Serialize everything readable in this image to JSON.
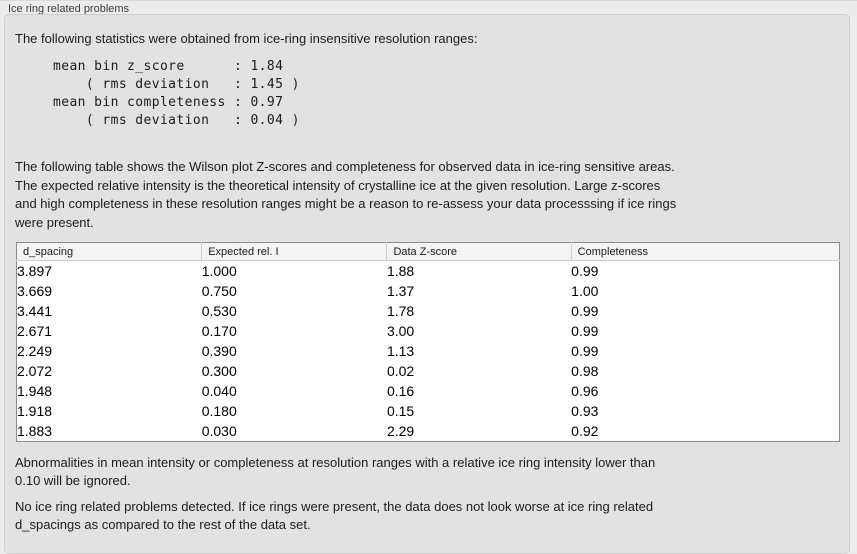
{
  "group": {
    "title": "Ice ring related problems"
  },
  "intro_text": "The following statistics were obtained from ice-ring insensitive resolution ranges:",
  "stats_block_lines": [
    "mean bin z_score      : 1.84",
    "    ( rms deviation   : 1.45 )",
    "mean bin completeness : 0.97",
    "    ( rms deviation   : 0.04 )"
  ],
  "stats": {
    "mean_bin_z_score": "1.84",
    "z_score_rms_deviation": "1.45",
    "mean_bin_completeness": "0.97",
    "completeness_rms_deviation": "0.04"
  },
  "table_intro_lines": [
    "The following table shows the Wilson plot Z-scores and completeness for observed data in ice-ring sensitive areas.",
    "The expected relative intensity is the theoretical intensity of crystalline ice at the given resolution. Large z-scores",
    "and high completeness in these resolution ranges might be a reason to re-assess your data processsing if ice rings",
    "were present."
  ],
  "table": {
    "columns": [
      "d_spacing",
      "Expected rel. I",
      "Data Z-score",
      "Completeness"
    ],
    "rows": [
      [
        "3.897",
        "1.000",
        "1.88",
        "0.99"
      ],
      [
        "3.669",
        "0.750",
        "1.37",
        "1.00"
      ],
      [
        "3.441",
        "0.530",
        "1.78",
        "0.99"
      ],
      [
        "2.671",
        "0.170",
        "3.00",
        "0.99"
      ],
      [
        "2.249",
        "0.390",
        "1.13",
        "0.99"
      ],
      [
        "2.072",
        "0.300",
        "0.02",
        "0.98"
      ],
      [
        "1.948",
        "0.040",
        "0.16",
        "0.96"
      ],
      [
        "1.918",
        "0.180",
        "0.15",
        "0.93"
      ],
      [
        "1.883",
        "0.030",
        "2.29",
        "0.92"
      ]
    ]
  },
  "notes": {
    "ignore_lines": [
      "Abnormalities in mean intensity or completeness at resolution ranges with a relative ice ring intensity lower than",
      "0.10 will be ignored."
    ],
    "conclusion_lines": [
      "No ice ring related problems detected. If ice rings were present, the data does not look worse at ice ring related",
      "d_spacings as compared to the rest of the data set."
    ]
  },
  "colors": {
    "page_background": "#ececec",
    "panel_background": "#e2e2e2",
    "table_border": "#8c8c8c",
    "header_background": "#f4f4f4"
  }
}
